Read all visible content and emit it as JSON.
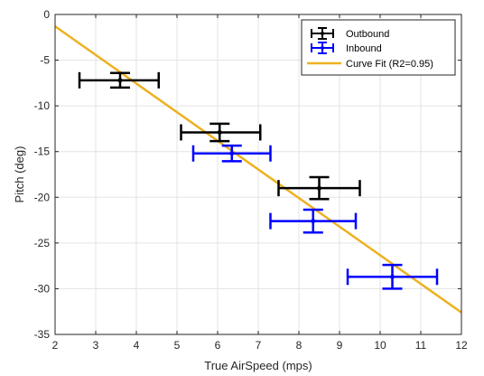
{
  "chart_data": {
    "type": "scatter",
    "xlabel": "True AirSpeed (mps)",
    "ylabel": "Pitch (deg)",
    "xlim": [
      2,
      12
    ],
    "ylim": [
      -35,
      0
    ],
    "xticks": [
      2,
      3,
      4,
      5,
      6,
      7,
      8,
      9,
      10,
      11,
      12
    ],
    "yticks": [
      0,
      -5,
      -10,
      -15,
      -20,
      -25,
      -30,
      -35
    ],
    "grid": true,
    "legend_position": "top-right",
    "series": [
      {
        "name": "Outbound",
        "kind": "errorbar",
        "color": "#000000",
        "points": [
          {
            "x": 3.6,
            "y": -7.2,
            "xneg": 1.0,
            "xpos": 0.95,
            "yneg": 0.8,
            "ypos": 0.8
          },
          {
            "x": 6.05,
            "y": -12.9,
            "xneg": 0.95,
            "xpos": 1.0,
            "yneg": 0.95,
            "ypos": 0.95
          },
          {
            "x": 8.5,
            "y": -19.0,
            "xneg": 1.0,
            "xpos": 1.0,
            "yneg": 1.2,
            "ypos": 1.2
          }
        ]
      },
      {
        "name": "Inbound",
        "kind": "errorbar",
        "color": "#0000ff",
        "points": [
          {
            "x": 6.35,
            "y": -15.2,
            "xneg": 0.95,
            "xpos": 0.95,
            "yneg": 0.85,
            "ypos": 0.85
          },
          {
            "x": 8.35,
            "y": -22.6,
            "xneg": 1.05,
            "xpos": 1.05,
            "yneg": 1.25,
            "ypos": 1.25
          },
          {
            "x": 10.3,
            "y": -28.7,
            "xneg": 1.1,
            "xpos": 1.1,
            "yneg": 1.3,
            "ypos": 1.3
          }
        ]
      },
      {
        "name": "Curve Fit (R2=0.95)",
        "kind": "line",
        "color": "#edb120",
        "points": [
          {
            "x": 2.0,
            "y": -1.3
          },
          {
            "x": 12.0,
            "y": -32.6
          }
        ]
      }
    ]
  }
}
